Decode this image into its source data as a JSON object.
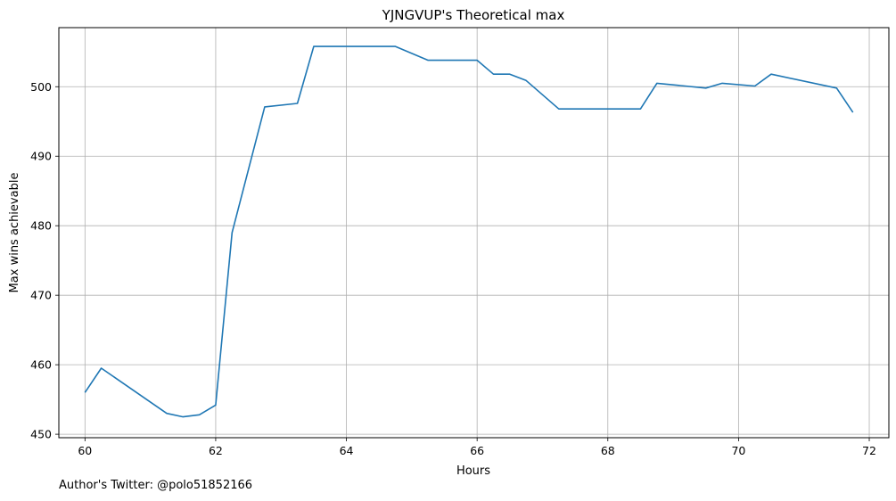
{
  "chart_data": {
    "type": "line",
    "title": "YJNGVUP's Theoretical max",
    "xlabel": "Hours",
    "ylabel": "Max wins achievable",
    "xlim": [
      59.6,
      72.3
    ],
    "ylim": [
      449.5,
      508.5
    ],
    "xticks": [
      60,
      62,
      64,
      66,
      68,
      70,
      72
    ],
    "yticks": [
      450,
      460,
      470,
      480,
      490,
      500
    ],
    "grid": true,
    "line_color": "#1f77b4",
    "series": [
      {
        "x": [
          60,
          60.25,
          61.25,
          61.5,
          61.75,
          62,
          62.25,
          62.75,
          63.25,
          63.5,
          64,
          64.75,
          65.25,
          66,
          66.25,
          66.5,
          66.75,
          67.25,
          67.75,
          68.5,
          68.75,
          69.5,
          69.75,
          70.25,
          70.5,
          71.5,
          71.75
        ],
        "y": [
          456,
          459.5,
          453,
          452.5,
          452.8,
          454.2,
          479,
          497.1,
          497.6,
          505.8,
          505.8,
          505.8,
          503.8,
          503.8,
          501.8,
          501.8,
          500.9,
          496.8,
          496.8,
          496.8,
          500.5,
          499.8,
          500.5,
          500.1,
          501.8,
          499.8,
          496.3
        ]
      }
    ]
  },
  "footer": "Author's Twitter: @polo51852166"
}
